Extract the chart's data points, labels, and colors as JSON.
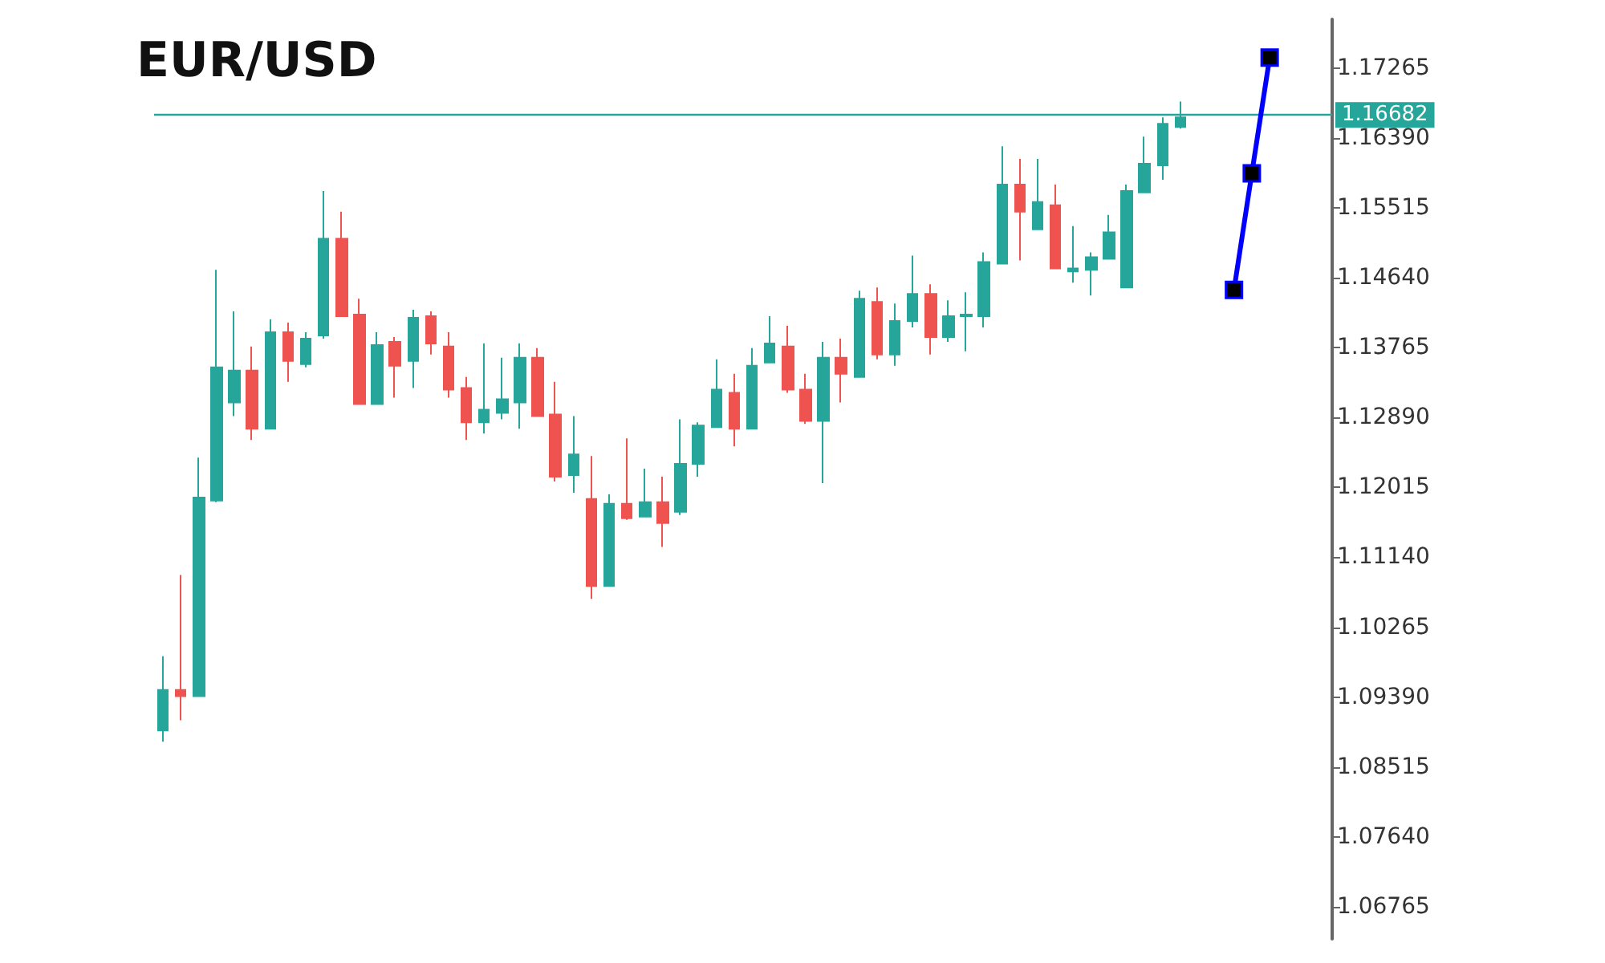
{
  "chart_data": {
    "type": "candlestick",
    "title": "EUR/USD",
    "categories": [
      null,
      null,
      null,
      null,
      null,
      null,
      null,
      null,
      null,
      null,
      null,
      null,
      null,
      null,
      null,
      null,
      null,
      null,
      null,
      null,
      null,
      null,
      null,
      null,
      null,
      null,
      null,
      null,
      null,
      null,
      null,
      null,
      null,
      null,
      null,
      null,
      null,
      null,
      null,
      null,
      null,
      null,
      null,
      null,
      null,
      null,
      null,
      null,
      null,
      null,
      null,
      null,
      null,
      null,
      null,
      null,
      null,
      null,
      null,
      null,
      null,
      null,
      null,
      null,
      null,
      null
    ],
    "ohlc": [
      [
        1.0897,
        1.099,
        1.0883,
        1.0948
      ],
      [
        1.0948,
        1.1092,
        1.091,
        1.094
      ],
      [
        1.094,
        1.1239,
        1.094,
        1.1189
      ],
      [
        1.1185,
        1.1474,
        1.1183,
        1.1352
      ],
      [
        1.1308,
        1.1422,
        1.1291,
        1.1348
      ],
      [
        1.1348,
        1.1378,
        1.1261,
        1.1275
      ],
      [
        1.1275,
        1.1412,
        1.1275,
        1.1396
      ],
      [
        1.1396,
        1.1408,
        1.1334,
        1.136
      ],
      [
        1.1356,
        1.1396,
        1.1352,
        1.1388
      ],
      [
        1.1392,
        1.1573,
        1.1388,
        1.1513
      ],
      [
        1.1513,
        1.1547,
        1.1416,
        1.1416
      ],
      [
        1.1418,
        1.1438,
        1.1306,
        1.1306
      ],
      [
        1.1306,
        1.1396,
        1.1306,
        1.138
      ],
      [
        1.1384,
        1.139,
        1.1314,
        1.1354
      ],
      [
        1.136,
        1.1424,
        1.1326,
        1.1414
      ],
      [
        1.1416,
        1.1422,
        1.1368,
        1.1382
      ],
      [
        1.1378,
        1.1396,
        1.1314,
        1.1324
      ],
      [
        1.1326,
        1.134,
        1.1261,
        1.1283
      ],
      [
        1.1283,
        1.1382,
        1.1269,
        1.1299
      ],
      [
        1.1295,
        1.1364,
        1.1287,
        1.1312
      ],
      [
        1.1308,
        1.1382,
        1.1275,
        1.1364
      ],
      [
        1.1364,
        1.1376,
        1.1291,
        1.1291
      ],
      [
        1.1293,
        1.1334,
        1.1209,
        1.1215
      ],
      [
        1.1217,
        1.1291,
        1.1195,
        1.1243
      ],
      [
        1.1187,
        1.1241,
        1.1062,
        1.1078
      ],
      [
        1.1078,
        1.1193,
        1.1078,
        1.1181
      ],
      [
        1.1181,
        1.1263,
        1.1161,
        1.1163
      ],
      [
        1.1165,
        1.1225,
        1.1165,
        1.1183
      ],
      [
        1.1183,
        1.1215,
        1.1127,
        1.1157
      ],
      [
        1.1171,
        1.1287,
        1.1167,
        1.1231
      ],
      [
        1.1231,
        1.1283,
        1.1215,
        1.1279
      ],
      [
        1.1277,
        1.1362,
        1.1277,
        1.1324
      ],
      [
        1.132,
        1.1344,
        1.1253,
        1.1275
      ],
      [
        1.1275,
        1.1376,
        1.1275,
        1.1354
      ],
      [
        1.1358,
        1.1416,
        1.1358,
        1.1382
      ],
      [
        1.1378,
        1.1404,
        1.132,
        1.1324
      ],
      [
        1.1324,
        1.1344,
        1.1281,
        1.1285
      ],
      [
        1.1285,
        1.1384,
        1.1207,
        1.1364
      ],
      [
        1.1364,
        1.1388,
        1.1308,
        1.1344
      ],
      [
        1.134,
        1.1448,
        1.134,
        1.1438
      ],
      [
        1.1434,
        1.1452,
        1.1362,
        1.1368
      ],
      [
        1.1368,
        1.1432,
        1.1354,
        1.141
      ],
      [
        1.141,
        1.1492,
        1.1402,
        1.1444
      ],
      [
        1.1444,
        1.1456,
        1.1368,
        1.139
      ],
      [
        1.139,
        1.1436,
        1.1384,
        1.1416
      ],
      [
        1.1416,
        1.1446,
        1.1372,
        1.1418
      ],
      [
        1.1416,
        1.1496,
        1.1402,
        1.1484
      ],
      [
        1.1482,
        1.1629,
        1.1482,
        1.1581
      ],
      [
        1.1581,
        1.1613,
        1.1486,
        1.1547
      ],
      [
        1.1525,
        1.1613,
        1.1525,
        1.1559
      ],
      [
        1.1555,
        1.1581,
        1.1476,
        1.1476
      ],
      [
        1.1472,
        1.1529,
        1.1458,
        1.1476
      ],
      [
        1.1474,
        1.1496,
        1.1442,
        1.149
      ],
      [
        1.1488,
        1.1543,
        1.1488,
        1.1521
      ],
      [
        1.1452,
        1.1581,
        1.1452,
        1.1573
      ],
      [
        1.1571,
        1.1641,
        1.1571,
        1.1607
      ],
      [
        1.1605,
        1.1665,
        1.1587,
        1.1657
      ],
      [
        1.1653,
        1.1685,
        1.1651,
        1.1665
      ],
      null,
      null,
      null,
      null,
      null,
      null,
      null,
      null
    ],
    "colors": [
      "#26a69a",
      "#ef5350",
      "#26a69a",
      "#26a69a",
      "#26a69a",
      "#ef5350",
      "#26a69a",
      "#ef5350",
      "#26a69a",
      "#26a69a",
      "#ef5350",
      "#ef5350",
      "#26a69a",
      "#ef5350",
      "#26a69a",
      "#ef5350",
      "#ef5350",
      "#ef5350",
      "#26a69a",
      "#26a69a",
      "#26a69a",
      "#ef5350",
      "#ef5350",
      "#26a69a",
      "#ef5350",
      "#26a69a",
      "#ef5350",
      "#26a69a",
      "#ef5350",
      "#26a69a",
      "#26a69a",
      "#26a69a",
      "#ef5350",
      "#26a69a",
      "#26a69a",
      "#ef5350",
      "#ef5350",
      "#26a69a",
      "#ef5350",
      "#26a69a",
      "#ef5350",
      "#26a69a",
      "#26a69a",
      "#ef5350",
      "#26a69a",
      "#26a69a",
      "#26a69a",
      "#26a69a",
      "#ef5350",
      "#26a69a",
      "#ef5350",
      "#26a69a",
      "#26a69a",
      "#26a69a",
      "#26a69a",
      "#26a69a",
      "#26a69a",
      "#26a69a",
      null,
      null,
      null,
      null,
      null,
      null,
      null,
      null
    ],
    "series": [
      {
        "type": "line",
        "color": "#0000ff",
        "values": [
          null,
          null,
          null,
          null,
          null,
          null,
          null,
          null,
          null,
          null,
          null,
          null,
          null,
          null,
          null,
          null,
          null,
          null,
          null,
          null,
          null,
          null,
          null,
          null,
          null,
          null,
          null,
          null,
          null,
          null,
          null,
          null,
          null,
          null,
          null,
          null,
          null,
          null,
          null,
          null,
          null,
          null,
          null,
          null,
          null,
          null,
          null,
          null,
          null,
          null,
          null,
          null,
          null,
          null,
          null,
          null,
          null,
          null,
          null,
          null,
          1.1449,
          1.1595,
          1.174,
          null,
          null,
          null
        ]
      }
    ],
    "marker": "square",
    "ylim": [
      1.0636,
      1.1788
    ],
    "yticks": [
      1.06765,
      {
        "value": 1.0764,
        "label": "1.07640"
      },
      1.08515,
      {
        "value": 1.0939,
        "label": "1.09390"
      },
      1.10265,
      {
        "value": 1.1114,
        "label": "1.11140"
      },
      1.12015,
      {
        "value": 1.1289,
        "label": "1.12890"
      },
      1.13765,
      {
        "value": 1.1464,
        "label": "1.14640"
      },
      1.15515,
      {
        "value": 1.1639,
        "label": "1.16390"
      },
      1.17265
    ],
    "ref_lines": [
      {
        "axis": "y",
        "value": 1.16682,
        "label": "1.16682",
        "color": "#26a69a"
      }
    ],
    "tick_labels": "y",
    "grid": false
  }
}
